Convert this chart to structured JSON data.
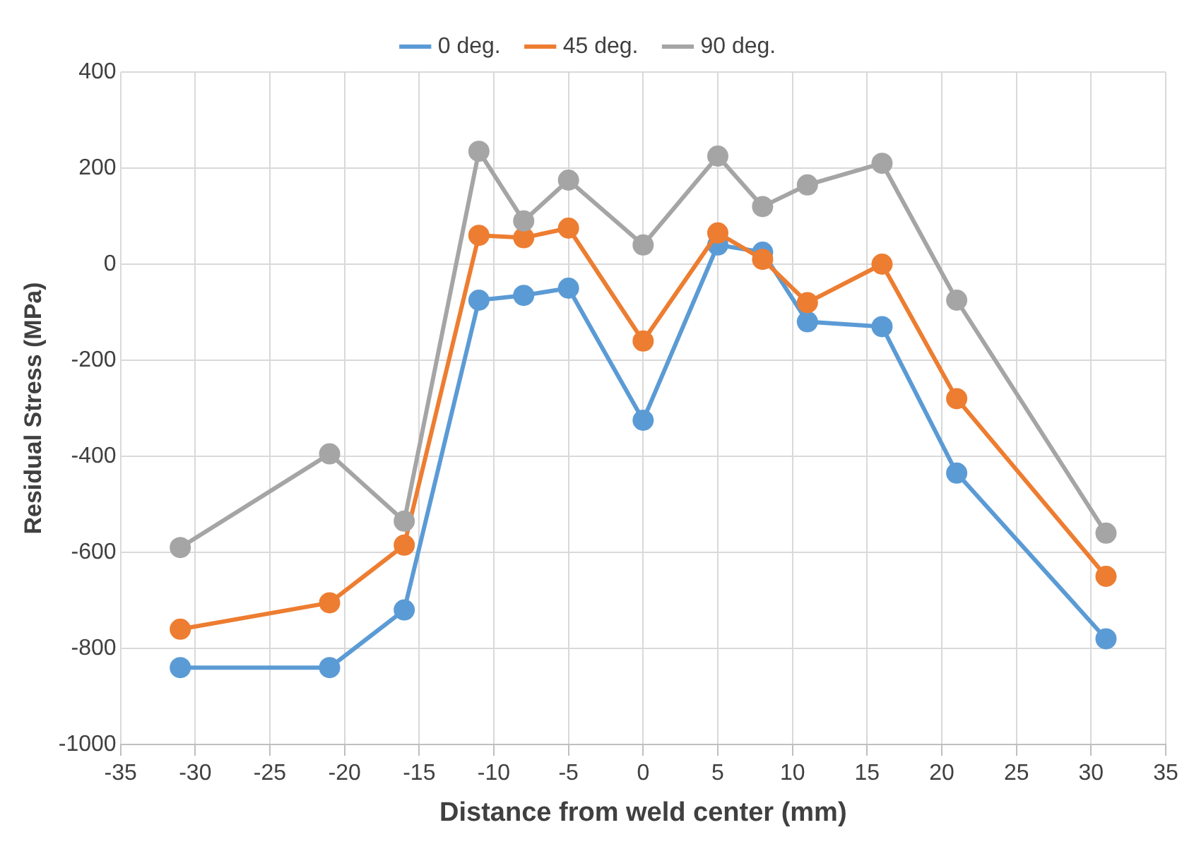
{
  "chart_data": {
    "type": "line",
    "xlabel": "Distance from weld center (mm)",
    "ylabel": "Residual Stress (MPa)",
    "x": [
      -31,
      -21,
      -16,
      -11,
      -8,
      -5,
      0,
      5,
      8,
      11,
      16,
      21,
      31
    ],
    "series": [
      {
        "name": "0 deg.",
        "color": "#5b9bd5",
        "values": [
          -840,
          -840,
          -720,
          -75,
          -65,
          -50,
          -325,
          40,
          25,
          -120,
          -130,
          -435,
          -780
        ]
      },
      {
        "name": "45 deg.",
        "color": "#ed7d31",
        "values": [
          -760,
          -705,
          -585,
          60,
          55,
          75,
          -160,
          65,
          10,
          -80,
          0,
          -280,
          -650
        ]
      },
      {
        "name": "90 deg.",
        "color": "#a5a5a5",
        "values": [
          -590,
          -395,
          -535,
          235,
          90,
          175,
          40,
          225,
          120,
          165,
          210,
          -75,
          -560
        ]
      }
    ],
    "xlim": [
      -35,
      35
    ],
    "xticks": [
      -35,
      -30,
      -25,
      -20,
      -15,
      -10,
      -5,
      0,
      5,
      10,
      15,
      20,
      25,
      30,
      35
    ],
    "ylim": [
      -1000,
      400
    ],
    "yticks": [
      -1000,
      -800,
      -600,
      -400,
      -200,
      0,
      200,
      400
    ],
    "grid": true,
    "legend": "top",
    "marker": "circle",
    "line_style": "solid"
  }
}
